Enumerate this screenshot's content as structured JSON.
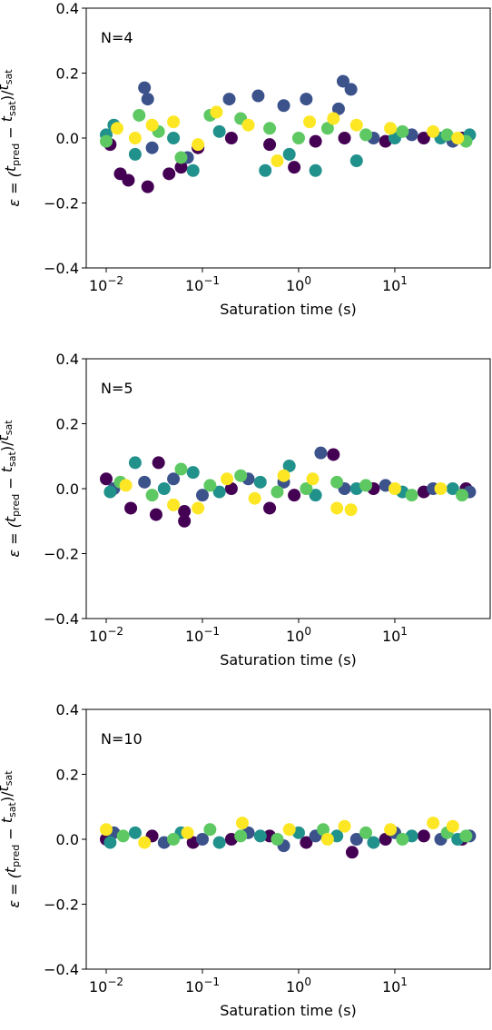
{
  "chart_data": [
    {
      "type": "scatter",
      "annotation": "N=4",
      "xlabel": "Saturation time (s)",
      "ylabel": [
        "ε = (",
        "t",
        "pred",
        " − ",
        "t",
        "sat",
        ")/",
        "t",
        "sat"
      ],
      "log_x": true,
      "xlim": [
        0.0062,
        98
      ],
      "ylim": [
        -0.4,
        0.4
      ],
      "xticks": [
        {
          "value": 0.01,
          "label": "10−2"
        },
        {
          "value": 0.1,
          "label": "10−1"
        },
        {
          "value": 1,
          "label": "100"
        },
        {
          "value": 10,
          "label": "101"
        }
      ],
      "yticks": [
        {
          "value": -0.4,
          "label": "−0.4"
        },
        {
          "value": -0.2,
          "label": "−0.2"
        },
        {
          "value": 0,
          "label": "0.0"
        },
        0.2,
        0.4
      ],
      "series": [
        {
          "color": "#440154",
          "x": [
            0.011,
            0.014,
            0.017,
            0.027,
            0.045,
            0.06,
            0.09,
            0.2,
            0.5,
            0.9,
            1.5,
            3,
            8,
            20,
            50
          ],
          "values": [
            -0.02,
            -0.11,
            -0.13,
            -0.15,
            -0.11,
            -0.09,
            -0.03,
            0.0,
            -0.02,
            -0.09,
            -0.01,
            0.0,
            -0.01,
            0.0,
            0.0
          ]
        },
        {
          "color": "#3b528b",
          "x": [
            0.025,
            0.027,
            0.03,
            0.07,
            0.19,
            0.38,
            0.7,
            1.2,
            2.6,
            2.9,
            3.5,
            6,
            15,
            40
          ],
          "values": [
            0.155,
            0.12,
            -0.03,
            -0.06,
            0.12,
            0.13,
            0.1,
            0.12,
            0.09,
            0.175,
            0.15,
            0.0,
            0.01,
            -0.01
          ]
        },
        {
          "color": "#21918c",
          "x": [
            0.01,
            0.012,
            0.02,
            0.05,
            0.08,
            0.15,
            0.45,
            0.8,
            1.5,
            4,
            10,
            30,
            60
          ],
          "values": [
            0.01,
            0.04,
            -0.05,
            0.0,
            -0.1,
            0.02,
            -0.1,
            -0.05,
            -0.1,
            -0.07,
            0.0,
            0.0,
            0.01
          ]
        },
        {
          "color": "#5ec962",
          "x": [
            0.01,
            0.022,
            0.035,
            0.06,
            0.12,
            0.25,
            0.5,
            1.0,
            2,
            5,
            12,
            35,
            55
          ],
          "values": [
            -0.01,
            0.07,
            0.02,
            -0.06,
            0.07,
            0.06,
            0.03,
            0.0,
            0.03,
            0.01,
            0.02,
            0.01,
            -0.01
          ]
        },
        {
          "color": "#fde725",
          "x": [
            0.013,
            0.02,
            0.03,
            0.05,
            0.09,
            0.14,
            0.3,
            0.6,
            1.3,
            2.3,
            4,
            9,
            25,
            45
          ],
          "values": [
            0.03,
            0.0,
            0.04,
            0.05,
            -0.02,
            0.08,
            0.04,
            -0.07,
            0.05,
            0.06,
            0.04,
            0.03,
            0.02,
            0.0
          ]
        }
      ]
    },
    {
      "type": "scatter",
      "annotation": "N=5",
      "xlabel": "Saturation time (s)",
      "ylabel": [
        "ε = (",
        "t",
        "pred",
        " − ",
        "t",
        "sat",
        ")/",
        "t",
        "sat"
      ],
      "log_x": true,
      "xlim": [
        0.0062,
        98
      ],
      "ylim": [
        -0.4,
        0.4
      ],
      "xticks": [
        {
          "value": 0.01,
          "label": "10−2"
        },
        {
          "value": 0.1,
          "label": "10−1"
        },
        {
          "value": 1,
          "label": "100"
        },
        {
          "value": 10,
          "label": "101"
        }
      ],
      "yticks": [
        {
          "value": -0.4,
          "label": "−0.4"
        },
        {
          "value": -0.2,
          "label": "−0.2"
        },
        {
          "value": 0,
          "label": "0.0"
        },
        0.2,
        0.4
      ],
      "series": [
        {
          "color": "#440154",
          "x": [
            0.01,
            0.018,
            0.033,
            0.035,
            0.065,
            0.065,
            0.2,
            0.5,
            0.9,
            2.3,
            6,
            20,
            55
          ],
          "values": [
            0.03,
            -0.06,
            -0.08,
            0.08,
            -0.07,
            -0.1,
            0.0,
            -0.06,
            -0.02,
            0.105,
            0.0,
            -0.01,
            0.0
          ]
        },
        {
          "color": "#3b528b",
          "x": [
            0.012,
            0.025,
            0.05,
            0.1,
            0.3,
            0.7,
            1.7,
            3,
            8,
            25,
            60
          ],
          "values": [
            0.0,
            0.02,
            0.03,
            -0.02,
            0.03,
            0.02,
            0.11,
            0.0,
            0.01,
            0.0,
            -0.01
          ]
        },
        {
          "color": "#21918c",
          "x": [
            0.011,
            0.02,
            0.04,
            0.08,
            0.15,
            0.4,
            0.8,
            1.5,
            4,
            12,
            40
          ],
          "values": [
            -0.01,
            0.08,
            0.0,
            0.05,
            -0.01,
            0.02,
            0.07,
            -0.02,
            0.0,
            -0.01,
            0.0
          ]
        },
        {
          "color": "#5ec962",
          "x": [
            0.014,
            0.03,
            0.06,
            0.12,
            0.25,
            0.6,
            1.2,
            2.5,
            5,
            15,
            50
          ],
          "values": [
            0.02,
            -0.02,
            0.06,
            0.01,
            0.04,
            -0.01,
            0.0,
            0.02,
            0.01,
            -0.02,
            -0.02
          ]
        },
        {
          "color": "#fde725",
          "x": [
            0.016,
            0.05,
            0.09,
            0.18,
            0.35,
            0.7,
            1.4,
            2.5,
            3.5,
            10,
            30
          ],
          "values": [
            0.01,
            -0.05,
            -0.06,
            0.03,
            -0.03,
            0.04,
            0.03,
            -0.06,
            -0.065,
            0.0,
            0.0
          ]
        }
      ]
    },
    {
      "type": "scatter",
      "annotation": "N=10",
      "xlabel": "Saturation time (s)",
      "ylabel": [
        "ε = (",
        "t",
        "pred",
        " − ",
        "t",
        "sat",
        ")/",
        "t",
        "sat"
      ],
      "log_x": true,
      "xlim": [
        0.0062,
        98
      ],
      "ylim": [
        -0.4,
        0.4
      ],
      "xticks": [
        {
          "value": 0.01,
          "label": "10−2"
        },
        {
          "value": 0.1,
          "label": "10−1"
        },
        {
          "value": 1,
          "label": "100"
        },
        {
          "value": 10,
          "label": "101"
        }
      ],
      "yticks": [
        {
          "value": -0.4,
          "label": "−0.4"
        },
        {
          "value": -0.2,
          "label": "−0.2"
        },
        {
          "value": 0,
          "label": "0.0"
        },
        0.2,
        0.4
      ],
      "series": [
        {
          "color": "#440154",
          "x": [
            0.01,
            0.03,
            0.08,
            0.2,
            0.5,
            1.2,
            3.6,
            8,
            20,
            50
          ],
          "values": [
            0.0,
            0.01,
            -0.01,
            0.0,
            0.01,
            -0.01,
            -0.04,
            0.0,
            0.01,
            0.0
          ]
        },
        {
          "color": "#3b528b",
          "x": [
            0.012,
            0.04,
            0.1,
            0.3,
            0.7,
            1.5,
            4,
            10,
            30,
            60
          ],
          "values": [
            0.02,
            -0.01,
            0.0,
            0.02,
            -0.02,
            0.01,
            0.0,
            0.02,
            0.0,
            0.01
          ]
        },
        {
          "color": "#21918c",
          "x": [
            0.011,
            0.02,
            0.06,
            0.15,
            0.4,
            1,
            2.5,
            6,
            15,
            45
          ],
          "values": [
            -0.01,
            0.02,
            0.02,
            -0.01,
            0.01,
            0.02,
            0.01,
            -0.01,
            0.01,
            0.0
          ]
        },
        {
          "color": "#5ec962",
          "x": [
            0.015,
            0.05,
            0.12,
            0.25,
            0.6,
            1.8,
            5,
            12,
            35,
            55
          ],
          "values": [
            0.01,
            0.0,
            0.03,
            0.01,
            0.0,
            0.03,
            0.02,
            0.0,
            0.02,
            0.01
          ]
        },
        {
          "color": "#fde725",
          "x": [
            0.01,
            0.025,
            0.07,
            0.26,
            0.8,
            2,
            3,
            9,
            25,
            40
          ],
          "values": [
            0.03,
            -0.01,
            0.02,
            0.05,
            0.03,
            0.0,
            0.04,
            0.03,
            0.05,
            0.04
          ]
        }
      ]
    }
  ]
}
